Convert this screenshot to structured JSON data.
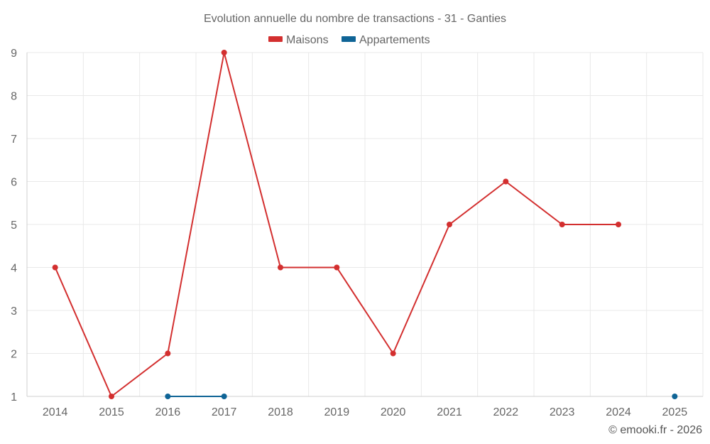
{
  "chart_data": {
    "type": "line",
    "title": "Evolution annuelle du nombre de transactions - 31 - Ganties",
    "x": [
      "2014",
      "2015",
      "2016",
      "2017",
      "2018",
      "2019",
      "2020",
      "2021",
      "2022",
      "2023",
      "2024",
      "2025"
    ],
    "ylim": [
      1,
      9
    ],
    "yticks": [
      1,
      2,
      3,
      4,
      5,
      6,
      7,
      8,
      9
    ],
    "grid": true,
    "legend_position": "top",
    "series": [
      {
        "name": "Maisons",
        "color": "#d32f2f",
        "values": [
          4,
          1,
          2,
          9,
          4,
          4,
          2,
          5,
          6,
          5,
          5,
          null
        ]
      },
      {
        "name": "Appartements",
        "color": "#0f6496",
        "values": [
          null,
          null,
          1,
          1,
          null,
          null,
          null,
          null,
          null,
          null,
          null,
          1
        ]
      }
    ]
  },
  "credit": "© emooki.fr - 2026"
}
